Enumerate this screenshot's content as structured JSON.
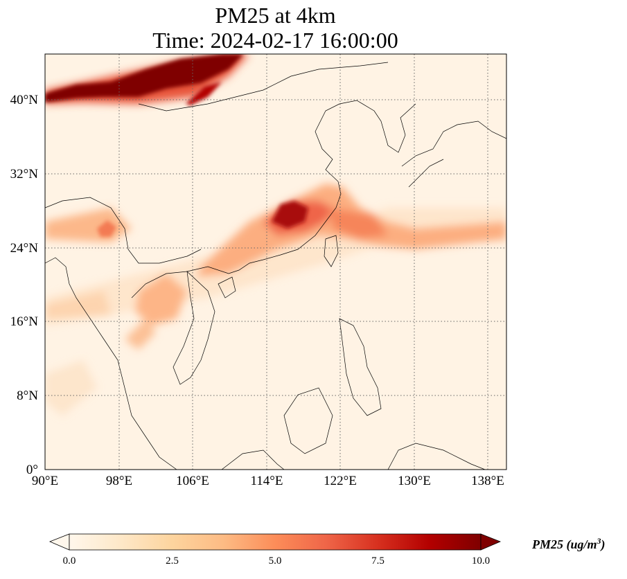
{
  "title": "PM25 at 4km",
  "subtitle": "Time: 2024-02-17 16:00:00",
  "axes": {
    "lon_ticks": [
      "90°E",
      "98°E",
      "106°E",
      "114°E",
      "122°E",
      "130°E",
      "138°E"
    ],
    "lat_ticks": [
      "0°",
      "8°N",
      "16°N",
      "24°N",
      "32°N",
      "40°N"
    ],
    "lon_range": [
      90,
      140
    ],
    "lat_range": [
      0,
      45
    ],
    "grid": "dotted"
  },
  "colorbar": {
    "label_main": "PM25 (ug/m",
    "label_exp": "3",
    "label_close": ")",
    "ticks": [
      "0.0",
      "2.5",
      "5.0",
      "7.5",
      "10.0"
    ],
    "colormap": [
      "#fff7ec",
      "#fee8c8",
      "#fdd49e",
      "#fdbb84",
      "#fc8d59",
      "#ef6548",
      "#d7301f",
      "#b30000",
      "#7f0000"
    ],
    "extend": "both"
  },
  "chart_data": {
    "type": "heatmap",
    "title": "PM25 at 4km",
    "subtitle": "Time: 2024-02-17 16:00:00",
    "variable": "PM25",
    "units": "ug/m3",
    "value_range": [
      0,
      10
    ],
    "xlabel": "",
    "ylabel": "",
    "features": [
      {
        "region": "northern band (Mongolia / North China)",
        "lon": [
          90,
          111
        ],
        "lat": [
          40,
          45
        ],
        "value": 10
      },
      {
        "region": "East China coast to Taiwan",
        "lon": [
          112,
          128
        ],
        "lat": [
          24,
          31
        ],
        "value": 7
      },
      {
        "region": "plume over western Pacific",
        "lon": [
          122,
          140
        ],
        "lat": [
          23,
          31
        ],
        "value": 4
      },
      {
        "region": "Myanmar / South Asia band",
        "lon": [
          90,
          100
        ],
        "lat": [
          24,
          28
        ],
        "value": 4
      },
      {
        "region": "Indochina streaks",
        "lon": [
          98,
          106
        ],
        "lat": [
          14,
          23
        ],
        "value": 4
      },
      {
        "region": "background ocean and south",
        "lon": [
          90,
          140
        ],
        "lat": [
          0,
          22
        ],
        "value": 1
      }
    ]
  }
}
